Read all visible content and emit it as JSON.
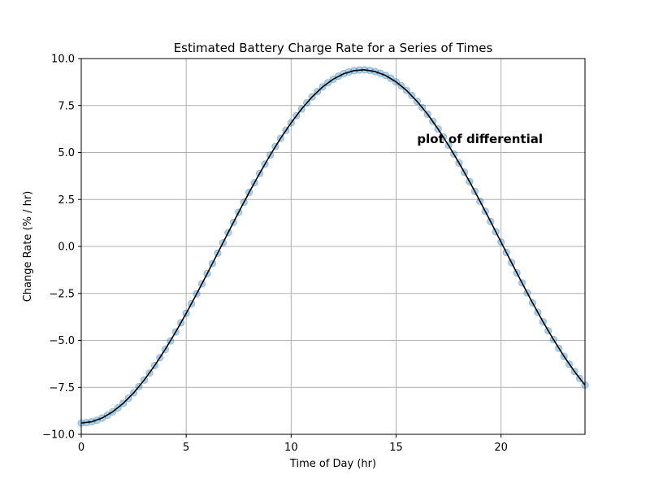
{
  "chart_data": {
    "type": "line",
    "title": "Estimated Battery Charge Rate for a Series of Times",
    "xlabel": "Time of Day (hr)",
    "ylabel": "Change Rate (% / hr)",
    "xlim": [
      0,
      24
    ],
    "ylim": [
      -10,
      10
    ],
    "xticks": [
      0,
      5,
      10,
      15,
      20
    ],
    "yticks": [
      -10.0,
      -7.5,
      -5.0,
      -2.5,
      0.0,
      2.5,
      5.0,
      7.5,
      10.0
    ],
    "xtick_labels": [
      "0",
      "5",
      "10",
      "15",
      "20"
    ],
    "ytick_labels": [
      "−10.0",
      "−7.5",
      "−5.0",
      "−2.5",
      "0.0",
      "2.5",
      "5.0",
      "7.5",
      "10.0"
    ],
    "grid": true,
    "annotation": {
      "text": "plot of differential",
      "x": 16,
      "y": 5.5
    },
    "colors": {
      "scatter": "#1f77b4",
      "line": "#000000"
    },
    "series": [
      {
        "kind": "scatter",
        "x": [
          0,
          0.25,
          0.5,
          0.75,
          1.0,
          1.25,
          1.5,
          1.75,
          2.0,
          2.25,
          2.5,
          2.75,
          3.0,
          3.25,
          3.5,
          3.75,
          4.0,
          4.25,
          4.5,
          4.75,
          5.0,
          5.25,
          5.5,
          5.75,
          6.0,
          6.25,
          6.5,
          6.75,
          7.0,
          7.25,
          7.5,
          7.75,
          8.0,
          8.25,
          8.5,
          8.75,
          9.0,
          9.25,
          9.5,
          9.75,
          10.0,
          10.25,
          10.5,
          10.75,
          11.0,
          11.25,
          11.5,
          11.75,
          12.0,
          12.25,
          12.5,
          12.75,
          13.0,
          13.25,
          13.5,
          13.75,
          14.0,
          14.25,
          14.5,
          14.75,
          15.0,
          15.25,
          15.5,
          15.75,
          16.0,
          16.25,
          16.5,
          16.75,
          17.0,
          17.25,
          17.5,
          17.75,
          18.0,
          18.25,
          18.5,
          18.75,
          19.0,
          19.25,
          19.5,
          19.75,
          20.0,
          20.25,
          20.5,
          20.75,
          21.0,
          21.25,
          21.5,
          21.75,
          22.0,
          22.25,
          22.5,
          22.75,
          23.0,
          23.25,
          23.5,
          23.75,
          24.0
        ],
        "y": [
          -9.4,
          -9.38,
          -9.33,
          -9.25,
          -9.13,
          -8.98,
          -8.8,
          -8.59,
          -8.35,
          -8.08,
          -7.79,
          -7.46,
          -7.11,
          -6.74,
          -6.34,
          -5.92,
          -5.48,
          -5.03,
          -4.55,
          -4.06,
          -3.56,
          -3.05,
          -2.52,
          -1.99,
          -1.45,
          -0.91,
          -0.36,
          0.19,
          0.74,
          1.28,
          1.82,
          2.35,
          2.88,
          3.39,
          3.89,
          4.38,
          4.86,
          5.32,
          5.76,
          6.18,
          6.58,
          6.96,
          7.32,
          7.65,
          7.96,
          8.24,
          8.49,
          8.71,
          8.9,
          9.06,
          9.19,
          9.29,
          9.36,
          9.39,
          9.4,
          9.37,
          9.31,
          9.22,
          9.1,
          8.95,
          8.76,
          8.55,
          8.3,
          8.03,
          7.72,
          7.39,
          7.04,
          6.66,
          6.25,
          5.83,
          5.38,
          4.92,
          4.44,
          3.95,
          3.45,
          2.93,
          2.4,
          1.87,
          1.33,
          0.78,
          0.23,
          -0.32,
          -0.86,
          -1.41,
          -1.94,
          -2.47,
          -3.0,
          -3.51,
          -4.01,
          -4.49,
          -4.96,
          -5.42,
          -5.85,
          -6.27,
          -6.66,
          -7.03,
          -7.38
        ]
      },
      {
        "kind": "line",
        "x": [
          0,
          0.5,
          1.0,
          1.5,
          2.0,
          2.5,
          3.0,
          3.5,
          4.0,
          4.5,
          5.0,
          5.5,
          6.0,
          6.5,
          7.0,
          7.5,
          8.0,
          8.5,
          9.0,
          9.5,
          10.0,
          10.5,
          11.0,
          11.5,
          12.0,
          12.5,
          13.0,
          13.5,
          14.0,
          14.5,
          15.0,
          15.5,
          16.0,
          16.5,
          17.0,
          17.5,
          18.0,
          18.5,
          19.0,
          19.5,
          20.0,
          20.5,
          21.0,
          21.5,
          22.0,
          22.5,
          23.0,
          23.5,
          24.0
        ],
        "y": [
          -9.4,
          -9.33,
          -9.13,
          -8.8,
          -8.35,
          -7.79,
          -7.11,
          -6.34,
          -5.48,
          -4.55,
          -3.56,
          -2.52,
          -1.45,
          -0.36,
          0.74,
          1.82,
          2.88,
          3.89,
          4.86,
          5.76,
          6.58,
          7.32,
          7.96,
          8.49,
          8.9,
          9.19,
          9.36,
          9.4,
          9.31,
          9.1,
          8.76,
          8.3,
          7.72,
          7.04,
          6.25,
          5.38,
          4.44,
          3.45,
          2.4,
          1.33,
          0.23,
          -0.86,
          -1.94,
          -3.0,
          -4.01,
          -4.96,
          -5.85,
          -6.66,
          -7.38
        ]
      }
    ]
  }
}
